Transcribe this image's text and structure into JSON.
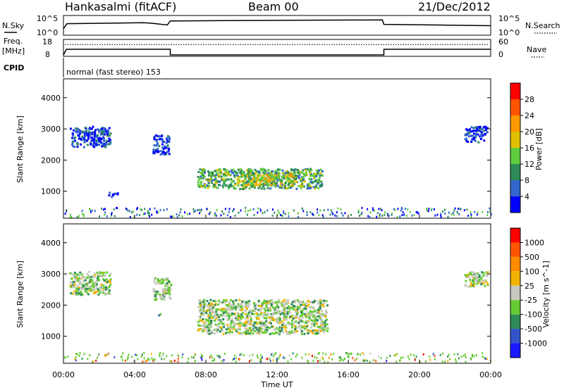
{
  "header": {
    "station": "Hankasalmi (fitACF)",
    "beam": "Beam 00",
    "date": "21/Dec/2012"
  },
  "panel_labels": {
    "nsky": "N.Sky",
    "nsearch": "N.Search",
    "freq_line1": "Freq.",
    "freq_line2": "[MHz]",
    "nave": "Nave",
    "cpid": "CPID",
    "cpid_text": "normal (fast stereo) 153"
  },
  "chart_data": [
    {
      "type": "line",
      "name": "noise",
      "ylabel_left": "N.Sky",
      "ylabel_right": "N.Search",
      "left_ticks": [
        "10^5",
        "10^0"
      ],
      "right_ticks": [
        "10^5",
        "10^0"
      ],
      "sky": [
        {
          "x": "00:00",
          "y": 1.5
        },
        {
          "x": "00:12",
          "y": 3.0
        },
        {
          "x": "02:00",
          "y": 3.1
        },
        {
          "x": "04:30",
          "y": 3.3
        },
        {
          "x": "05:00",
          "y": 3.1
        },
        {
          "x": "05:50",
          "y": 2.6
        },
        {
          "x": "06:00",
          "y": 3.8
        },
        {
          "x": "09:00",
          "y": 3.9
        },
        {
          "x": "13:00",
          "y": 4.0
        },
        {
          "x": "17:55",
          "y": 4.1
        },
        {
          "x": "18:00",
          "y": 2.8
        },
        {
          "x": "21:00",
          "y": 2.6
        },
        {
          "x": "23:59",
          "y": 2.4
        }
      ]
    },
    {
      "type": "line",
      "name": "frequency",
      "ylabel_left": "Freq. [MHz]",
      "ylabel_right": "Nave",
      "left_ticks": [
        "18",
        "8"
      ],
      "right_ticks": [
        "60",
        "0"
      ],
      "freq": [
        {
          "x": "00:00",
          "y": 8
        },
        {
          "x": "00:10",
          "y": 12
        },
        {
          "x": "06:00",
          "y": 12
        },
        {
          "x": "06:00",
          "y": 8
        },
        {
          "x": "18:00",
          "y": 8
        },
        {
          "x": "18:00",
          "y": 12
        },
        {
          "x": "23:59",
          "y": 12
        }
      ],
      "nave_level": 44
    },
    {
      "type": "heatmap",
      "name": "power",
      "ylabel": "Slant Range [km]",
      "yticks": [
        1000,
        2000,
        3000,
        4000
      ],
      "ylim": [
        180,
        4560
      ],
      "colorbar_label": "Power [dB]",
      "colorbar_ticks": [
        "4",
        "8",
        "12",
        "16",
        "20",
        "24",
        "28"
      ],
      "colorbar_colors": [
        "#0000ff",
        "#3366cc",
        "#2e8b57",
        "#5fcc3e",
        "#e0c000",
        "#ff9900",
        "#ff5500",
        "#ff0000"
      ],
      "clusters": [
        {
          "t0": 0.3,
          "t1": 2.6,
          "r0": 2450,
          "r1": 3100,
          "level": 1
        },
        {
          "t0": 2.5,
          "t1": 3.0,
          "r0": 850,
          "r1": 1000,
          "level": 1
        },
        {
          "t0": 5.0,
          "t1": 5.9,
          "r0": 2200,
          "r1": 2850,
          "level": 1
        },
        {
          "t0": 7.5,
          "t1": 14.5,
          "r0": 1100,
          "r1": 1750,
          "level": 3
        },
        {
          "t0": 10.0,
          "t1": 13.0,
          "r0": 1200,
          "r1": 1600,
          "level": 4
        },
        {
          "t0": 22.5,
          "t1": 23.8,
          "r0": 2600,
          "r1": 3100,
          "level": 1
        }
      ]
    },
    {
      "type": "heatmap",
      "name": "velocity",
      "ylabel": "Slant Range [km]",
      "yticks": [
        1000,
        2000,
        3000,
        4000
      ],
      "ylim": [
        180,
        4560
      ],
      "colorbar_label": "Velocity [m s^-1]",
      "colorbar_ticks": [
        "1000",
        "500",
        "100",
        "25",
        "-25",
        "-100",
        "-500",
        "-1000"
      ],
      "colorbar_colors": [
        "#1a1aff",
        "#3355cc",
        "#2e8b57",
        "#66cc33",
        "#c8c8c0",
        "#f0b400",
        "#ff8c00",
        "#ff5500",
        "#ff0000"
      ],
      "clusters": [
        {
          "t0": 0.3,
          "t1": 2.6,
          "r0": 2350,
          "r1": 3100,
          "level": 4
        },
        {
          "t0": 5.0,
          "t1": 6.0,
          "r0": 2200,
          "r1": 2900,
          "level": 4
        },
        {
          "t0": 7.5,
          "t1": 14.8,
          "r0": 1100,
          "r1": 2200,
          "level": 4
        },
        {
          "t0": 5.3,
          "t1": 5.4,
          "r0": 1600,
          "r1": 1750,
          "level": 3
        },
        {
          "t0": 22.5,
          "t1": 23.8,
          "r0": 2600,
          "r1": 3100,
          "level": 4
        }
      ]
    }
  ],
  "x_axis": {
    "ticks": [
      "00:00",
      "04:00",
      "08:00",
      "12:00",
      "16:00",
      "20:00",
      "00:00"
    ],
    "label": "Time UT"
  }
}
